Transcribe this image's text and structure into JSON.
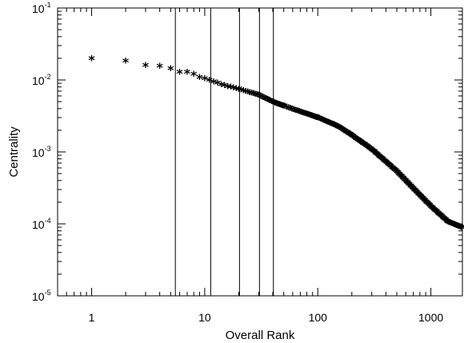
{
  "chart_data": {
    "type": "scatter",
    "title": "",
    "xlabel": "Overall Rank",
    "ylabel": "Centrality",
    "xscale": "log",
    "yscale": "log",
    "xlim": [
      0.5,
      1900
    ],
    "ylim": [
      1e-05,
      0.1
    ],
    "grid": false,
    "marker": "asterisk",
    "x_ticks": [
      {
        "value": 1,
        "label": "1"
      },
      {
        "value": 10,
        "label": "10"
      },
      {
        "value": 100,
        "label": "100"
      },
      {
        "value": 1000,
        "label": "1000"
      }
    ],
    "y_ticks": [
      {
        "value": 1e-05,
        "base": "10",
        "exp": "-5"
      },
      {
        "value": 0.0001,
        "base": "10",
        "exp": "-4"
      },
      {
        "value": 0.001,
        "base": "10",
        "exp": "-3"
      },
      {
        "value": 0.01,
        "base": "10",
        "exp": "-2"
      },
      {
        "value": 0.1,
        "base": "10",
        "exp": "-1"
      }
    ],
    "vertical_lines": [
      5.5,
      11.3,
      20.3,
      30.5,
      40.5
    ],
    "labeled_points": [
      {
        "x": 1,
        "y": 0.0192
      },
      {
        "x": 2,
        "y": 0.0178
      },
      {
        "x": 3,
        "y": 0.0155
      },
      {
        "x": 4,
        "y": 0.0151
      },
      {
        "x": 5,
        "y": 0.0139
      },
      {
        "x": 6,
        "y": 0.0125
      },
      {
        "x": 7,
        "y": 0.0124
      },
      {
        "x": 8,
        "y": 0.0117
      },
      {
        "x": 9,
        "y": 0.0105
      }
    ],
    "curve_knots": [
      {
        "x": 10,
        "y": 0.0101
      },
      {
        "x": 15,
        "y": 0.0081
      },
      {
        "x": 20,
        "y": 0.0072
      },
      {
        "x": 30,
        "y": 0.006
      },
      {
        "x": 40,
        "y": 0.0048
      },
      {
        "x": 60,
        "y": 0.0038
      },
      {
        "x": 100,
        "y": 0.0029
      },
      {
        "x": 150,
        "y": 0.0022
      },
      {
        "x": 200,
        "y": 0.00165
      },
      {
        "x": 300,
        "y": 0.00105
      },
      {
        "x": 500,
        "y": 0.00052
      },
      {
        "x": 700,
        "y": 0.0003
      },
      {
        "x": 1000,
        "y": 0.00017
      },
      {
        "x": 1400,
        "y": 0.000105
      },
      {
        "x": 1900,
        "y": 8.6e-05
      }
    ]
  }
}
